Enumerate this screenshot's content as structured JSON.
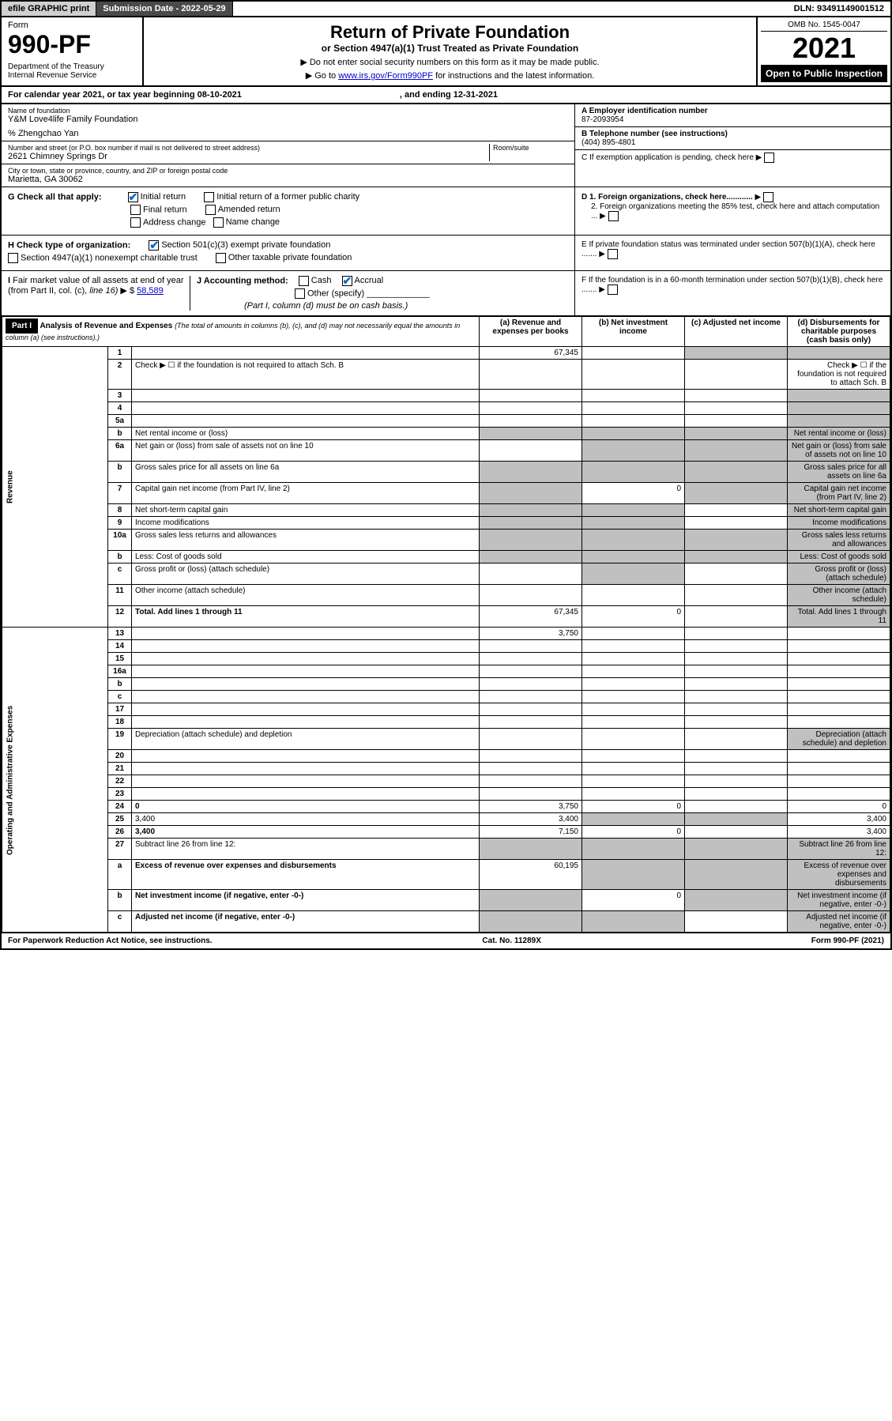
{
  "topbar": {
    "efile": "efile GRAPHIC print",
    "sub_label": "Submission Date - 2022-05-29",
    "dln": "DLN: 93491149001512"
  },
  "header": {
    "form_label": "Form",
    "form_num": "990-PF",
    "dept": "Department of the Treasury\nInternal Revenue Service",
    "title": "Return of Private Foundation",
    "sub1": "or Section 4947(a)(1) Trust Treated as Private Foundation",
    "inst1": "▶ Do not enter social security numbers on this form as it may be made public.",
    "inst2_pre": "▶ Go to ",
    "inst2_link": "www.irs.gov/Form990PF",
    "inst2_post": " for instructions and the latest information.",
    "omb": "OMB No. 1545-0047",
    "year": "2021",
    "open": "Open to Public Inspection"
  },
  "cal_year": {
    "text1": "For calendar year 2021, or tax year beginning 08-10-2021",
    "text2": ", and ending 12-31-2021"
  },
  "name_block": {
    "label": "Name of foundation",
    "value": "Y&M Love4life Family Foundation",
    "care_of": "% Zhengchao Yan",
    "addr_label": "Number and street (or P.O. box number if mail is not delivered to street address)",
    "addr": "2621 Chimney Springs Dr",
    "room_label": "Room/suite",
    "city_label": "City or town, state or province, country, and ZIP or foreign postal code",
    "city": "Marietta, GA  30062"
  },
  "right_info": {
    "a_label": "A Employer identification number",
    "a_val": "87-2093954",
    "b_label": "B Telephone number (see instructions)",
    "b_val": "(404) 895-4801",
    "c_label": "C If exemption application is pending, check here",
    "d1_label": "D 1. Foreign organizations, check here............",
    "d2_label": "2. Foreign organizations meeting the 85% test, check here and attach computation ...",
    "e_label": "E If private foundation status was terminated under section 507(b)(1)(A), check here .......",
    "f_label": "F If the foundation is in a 60-month termination under section 507(b)(1)(B), check here ......."
  },
  "g_section": {
    "label": "G Check all that apply:",
    "opts": [
      "Initial return",
      "Initial return of a former public charity",
      "Final return",
      "Amended return",
      "Address change",
      "Name change"
    ]
  },
  "h_section": {
    "label": "H Check type of organization:",
    "opt1": "Section 501(c)(3) exempt private foundation",
    "opt2": "Section 4947(a)(1) nonexempt charitable trust",
    "opt3": "Other taxable private foundation"
  },
  "i_section": {
    "label": "I Fair market value of all assets at end of year (from Part II, col. (c), line 16) ▶ $",
    "value": "58,589"
  },
  "j_section": {
    "label": "J Accounting method:",
    "cash": "Cash",
    "accrual": "Accrual",
    "other": "Other (specify)",
    "note": "(Part I, column (d) must be on cash basis.)"
  },
  "part1": {
    "label": "Part I",
    "title": "Analysis of Revenue and Expenses",
    "subtitle": "(The total of amounts in columns (b), (c), and (d) may not necessarily equal the amounts in column (a) (see instructions).)",
    "col_a": "(a) Revenue and expenses per books",
    "col_b": "(b) Net investment income",
    "col_c": "(c) Adjusted net income",
    "col_d": "(d) Disbursements for charitable purposes (cash basis only)"
  },
  "side_labels": {
    "revenue": "Revenue",
    "expenses": "Operating and Administrative Expenses"
  },
  "rows": [
    {
      "n": "1",
      "d": "",
      "a": "67,345",
      "b": "",
      "c": "",
      "grey_c": true,
      "grey_d": true
    },
    {
      "n": "2",
      "d": "Check ▶ ☐ if the foundation is not required to attach Sch. B",
      "span": true
    },
    {
      "n": "3",
      "d": "",
      "a": "",
      "b": "",
      "c": "",
      "grey_d": true
    },
    {
      "n": "4",
      "d": "",
      "a": "",
      "b": "",
      "c": "",
      "grey_d": true
    },
    {
      "n": "5a",
      "d": "",
      "a": "",
      "b": "",
      "c": "",
      "grey_d": true
    },
    {
      "n": "b",
      "d": "Net rental income or (loss)",
      "inline": true,
      "grey_all": true
    },
    {
      "n": "6a",
      "d": "Net gain or (loss) from sale of assets not on line 10",
      "a": "",
      "grey_bcd": true
    },
    {
      "n": "b",
      "d": "Gross sales price for all assets on line 6a",
      "inline": true,
      "grey_all": true
    },
    {
      "n": "7",
      "d": "Capital gain net income (from Part IV, line 2)",
      "a": "",
      "b": "0",
      "grey_a": true,
      "grey_cd": true
    },
    {
      "n": "8",
      "d": "Net short-term capital gain",
      "grey_ab": true,
      "c": "",
      "grey_d": true
    },
    {
      "n": "9",
      "d": "Income modifications",
      "grey_ab": true,
      "c": "",
      "grey_d": true
    },
    {
      "n": "10a",
      "d": "Gross sales less returns and allowances",
      "inline": true,
      "grey_all": true
    },
    {
      "n": "b",
      "d": "Less: Cost of goods sold",
      "inline": true,
      "grey_all": true
    },
    {
      "n": "c",
      "d": "Gross profit or (loss) (attach schedule)",
      "a": "",
      "grey_b": true,
      "c": "",
      "grey_d": true
    },
    {
      "n": "11",
      "d": "Other income (attach schedule)",
      "a": "",
      "b": "",
      "c": "",
      "grey_d": true
    },
    {
      "n": "12",
      "d": "Total. Add lines 1 through 11",
      "bold": true,
      "a": "67,345",
      "b": "0",
      "c": "",
      "grey_d": true
    },
    {
      "n": "13",
      "d": "",
      "a": "3,750",
      "b": "",
      "c": ""
    },
    {
      "n": "14",
      "d": "",
      "a": "",
      "b": "",
      "c": ""
    },
    {
      "n": "15",
      "d": "",
      "a": "",
      "b": "",
      "c": ""
    },
    {
      "n": "16a",
      "d": "",
      "a": "",
      "b": "",
      "c": ""
    },
    {
      "n": "b",
      "d": "",
      "a": "",
      "b": "",
      "c": ""
    },
    {
      "n": "c",
      "d": "",
      "a": "",
      "b": "",
      "c": ""
    },
    {
      "n": "17",
      "d": "",
      "a": "",
      "b": "",
      "c": ""
    },
    {
      "n": "18",
      "d": "",
      "a": "",
      "b": "",
      "c": ""
    },
    {
      "n": "19",
      "d": "Depreciation (attach schedule) and depletion",
      "a": "",
      "b": "",
      "c": "",
      "grey_d": true
    },
    {
      "n": "20",
      "d": "",
      "a": "",
      "b": "",
      "c": ""
    },
    {
      "n": "21",
      "d": "",
      "a": "",
      "b": "",
      "c": ""
    },
    {
      "n": "22",
      "d": "",
      "a": "",
      "b": "",
      "c": ""
    },
    {
      "n": "23",
      "d": "",
      "a": "",
      "b": "",
      "c": ""
    },
    {
      "n": "24",
      "d": "0",
      "bold": true,
      "a": "3,750",
      "b": "0",
      "c": ""
    },
    {
      "n": "25",
      "d": "3,400",
      "a": "3,400",
      "grey_bc": true
    },
    {
      "n": "26",
      "d": "3,400",
      "bold": true,
      "a": "7,150",
      "b": "0",
      "c": ""
    },
    {
      "n": "27",
      "d": "Subtract line 26 from line 12:",
      "grey_all": true
    },
    {
      "n": "a",
      "d": "Excess of revenue over expenses and disbursements",
      "bold": true,
      "a": "60,195",
      "grey_bcd": true
    },
    {
      "n": "b",
      "d": "Net investment income (if negative, enter -0-)",
      "bold": true,
      "grey_a": true,
      "b": "0",
      "grey_cd": true
    },
    {
      "n": "c",
      "d": "Adjusted net income (if negative, enter -0-)",
      "bold": true,
      "grey_ab": true,
      "c": "",
      "grey_d": true
    }
  ],
  "footer": {
    "left": "For Paperwork Reduction Act Notice, see instructions.",
    "mid": "Cat. No. 11289X",
    "right": "Form 990-PF (2021)"
  },
  "colors": {
    "black": "#000000",
    "grey_bg": "#c0c0c0",
    "dark_grey": "#4a4a4a",
    "light_grey": "#d0d0d0",
    "link": "#0000cc",
    "check": "#0066cc"
  }
}
